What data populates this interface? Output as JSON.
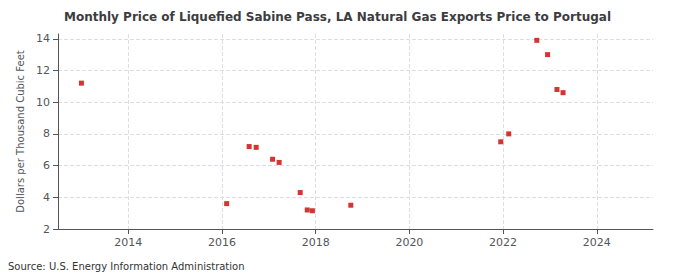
{
  "chart_data": {
    "type": "scatter",
    "title": "Monthly Price of Liquefied Sabine Pass, LA Natural Gas Exports Price to Portugal",
    "y_label": "Dollars per Thousand Cubic Feet",
    "annotations": [
      "Source: U.S. Energy Information Administration"
    ],
    "x": [
      2013.0,
      2016.1,
      2016.58,
      2016.73,
      2017.08,
      2017.22,
      2017.67,
      2017.82,
      2017.93,
      2018.75,
      2021.95,
      2022.12,
      2022.72,
      2022.95,
      2023.15,
      2023.28
    ],
    "values": [
      11.2,
      3.6,
      7.2,
      7.15,
      6.4,
      6.2,
      4.3,
      3.2,
      3.15,
      3.5,
      7.5,
      8.0,
      13.9,
      13.0,
      10.8,
      10.6
    ],
    "color": "#cc0000",
    "marker": "square",
    "xlim": [
      2012.5,
      2025.2
    ],
    "xticks": [
      2014,
      2016,
      2018,
      2020,
      2022,
      2024
    ],
    "ylim": [
      2,
      14.3
    ],
    "yticks": [
      2,
      4,
      6,
      8,
      10,
      12,
      14
    ],
    "grid": true
  }
}
